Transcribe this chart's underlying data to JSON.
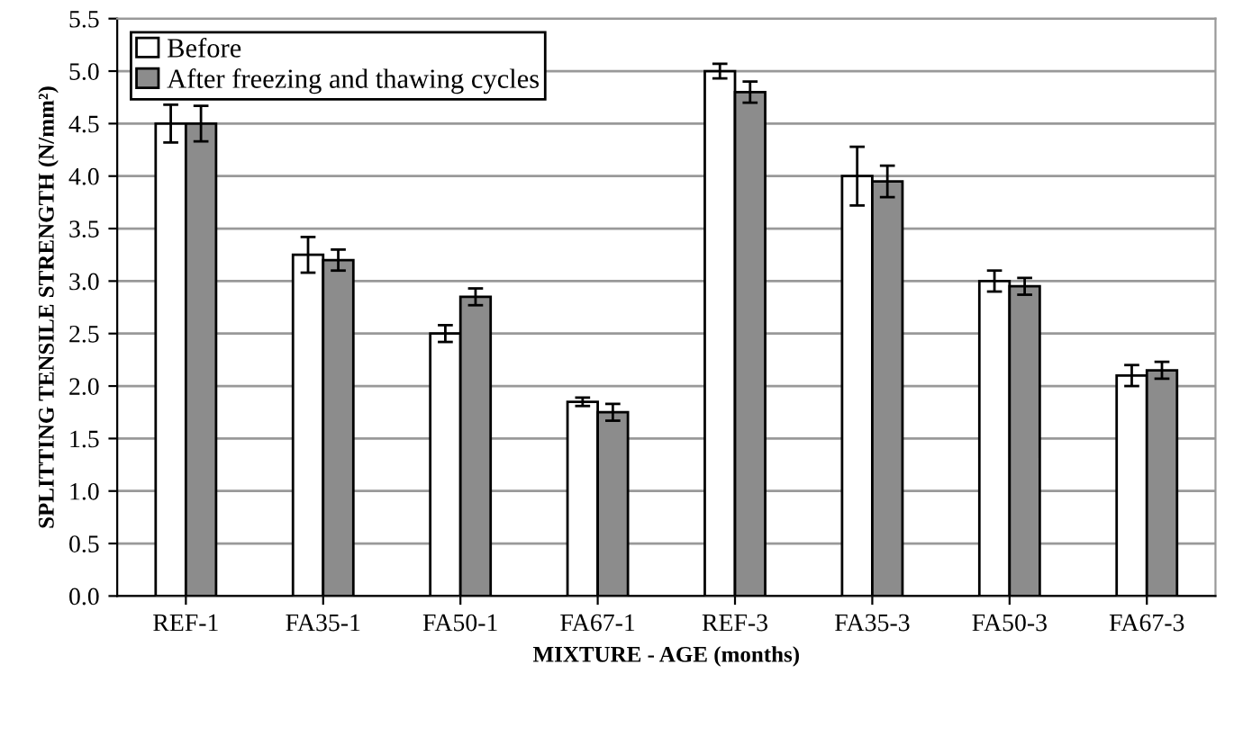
{
  "chart_data": {
    "type": "bar",
    "xlabel": "MIXTURE - AGE (months)",
    "ylabel": "SPLITTING TENSILE STRENGTH (N/mm²)",
    "categories": [
      "REF-1",
      "FA35-1",
      "FA50-1",
      "FA67-1",
      "REF-3",
      "FA35-3",
      "FA50-3",
      "FA67-3"
    ],
    "series": [
      {
        "name": "Before",
        "color": "#ffffff",
        "values": [
          4.5,
          3.25,
          2.5,
          1.85,
          5.0,
          4.0,
          3.0,
          2.1
        ],
        "errors": [
          0.18,
          0.17,
          0.08,
          0.04,
          0.07,
          0.28,
          0.1,
          0.1
        ]
      },
      {
        "name": "After freezing and thawing cycles",
        "color": "#8c8c8c",
        "values": [
          4.5,
          3.2,
          2.85,
          1.75,
          4.8,
          3.95,
          2.95,
          2.15
        ],
        "errors": [
          0.17,
          0.1,
          0.08,
          0.08,
          0.1,
          0.15,
          0.08,
          0.08
        ]
      }
    ],
    "ylim": [
      0,
      5.5
    ],
    "yticks": [
      {
        "value": 0,
        "label": "0.0"
      },
      {
        "value": 0.5,
        "label": "0.5"
      },
      {
        "value": 1,
        "label": "1.0"
      },
      {
        "value": 1.5,
        "label": "1.5"
      },
      {
        "value": 2,
        "label": "2.0"
      },
      {
        "value": 2.5,
        "label": "2.5"
      },
      {
        "value": 3,
        "label": "3.0"
      },
      {
        "value": 3.5,
        "label": "3.5"
      },
      {
        "value": 4,
        "label": "4.0"
      },
      {
        "value": 4.5,
        "label": "4.5"
      },
      {
        "value": 5,
        "label": "5.0"
      },
      {
        "value": 5.5,
        "label": "5.5"
      }
    ],
    "grid": "y",
    "legend": "top left"
  }
}
